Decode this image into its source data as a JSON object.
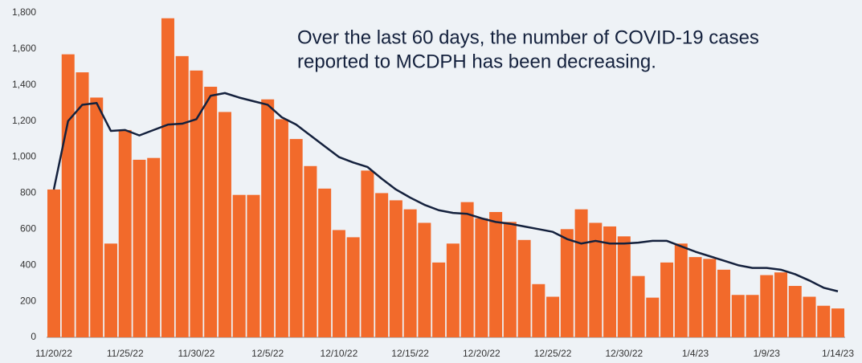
{
  "chart_data": {
    "type": "bar",
    "annotation": [
      "Over the last 60 days, the number of COVID-19 cases",
      "reported to MCDPH has been decreasing."
    ],
    "categories": [
      "11/20/22",
      null,
      null,
      null,
      null,
      "11/25/22",
      null,
      null,
      null,
      null,
      "11/30/22",
      null,
      null,
      null,
      null,
      "12/5/22",
      null,
      null,
      null,
      null,
      "12/10/22",
      null,
      null,
      null,
      null,
      "12/15/22",
      null,
      null,
      null,
      null,
      "12/20/22",
      null,
      null,
      null,
      null,
      "12/25/22",
      null,
      null,
      null,
      null,
      "12/30/22",
      null,
      null,
      null,
      null,
      "1/4/23",
      null,
      null,
      null,
      null,
      "1/9/23",
      null,
      null,
      null,
      null,
      "1/14/23"
    ],
    "series": [
      {
        "type": "bar",
        "color": "#f26a2b",
        "values": [
          820,
          1570,
          1470,
          1330,
          520,
          1150,
          985,
          995,
          1770,
          1560,
          1480,
          1390,
          1250,
          790,
          790,
          1320,
          1210,
          1100,
          950,
          825,
          595,
          555,
          925,
          800,
          760,
          710,
          635,
          415,
          520,
          750,
          660,
          695,
          640,
          540,
          295,
          225,
          600,
          710,
          635,
          615,
          560,
          340,
          220,
          415,
          520,
          445,
          435,
          375,
          235,
          235,
          345,
          360,
          285,
          225,
          175,
          160
        ]
      },
      {
        "type": "line",
        "color": "#14213d",
        "values": [
          820,
          1200,
          1290,
          1300,
          1145,
          1150,
          1120,
          1150,
          1180,
          1185,
          1210,
          1340,
          1355,
          1330,
          1310,
          1290,
          1220,
          1180,
          1120,
          1060,
          1000,
          970,
          945,
          880,
          820,
          775,
          735,
          705,
          690,
          685,
          660,
          640,
          630,
          615,
          600,
          585,
          545,
          520,
          535,
          520,
          520,
          525,
          535,
          535,
          505,
          475,
          450,
          425,
          400,
          385,
          385,
          375,
          350,
          315,
          275,
          255
        ]
      }
    ],
    "ylim": [
      0,
      1800
    ],
    "yticks": [
      0,
      200,
      400,
      600,
      800,
      {
        "value": 1000,
        "label": "1,000"
      },
      {
        "value": 1200,
        "label": "1,200"
      },
      {
        "value": 1400,
        "label": "1,400"
      },
      {
        "value": 1600,
        "label": "1,600"
      },
      {
        "value": 1800,
        "label": "1,800"
      }
    ]
  }
}
